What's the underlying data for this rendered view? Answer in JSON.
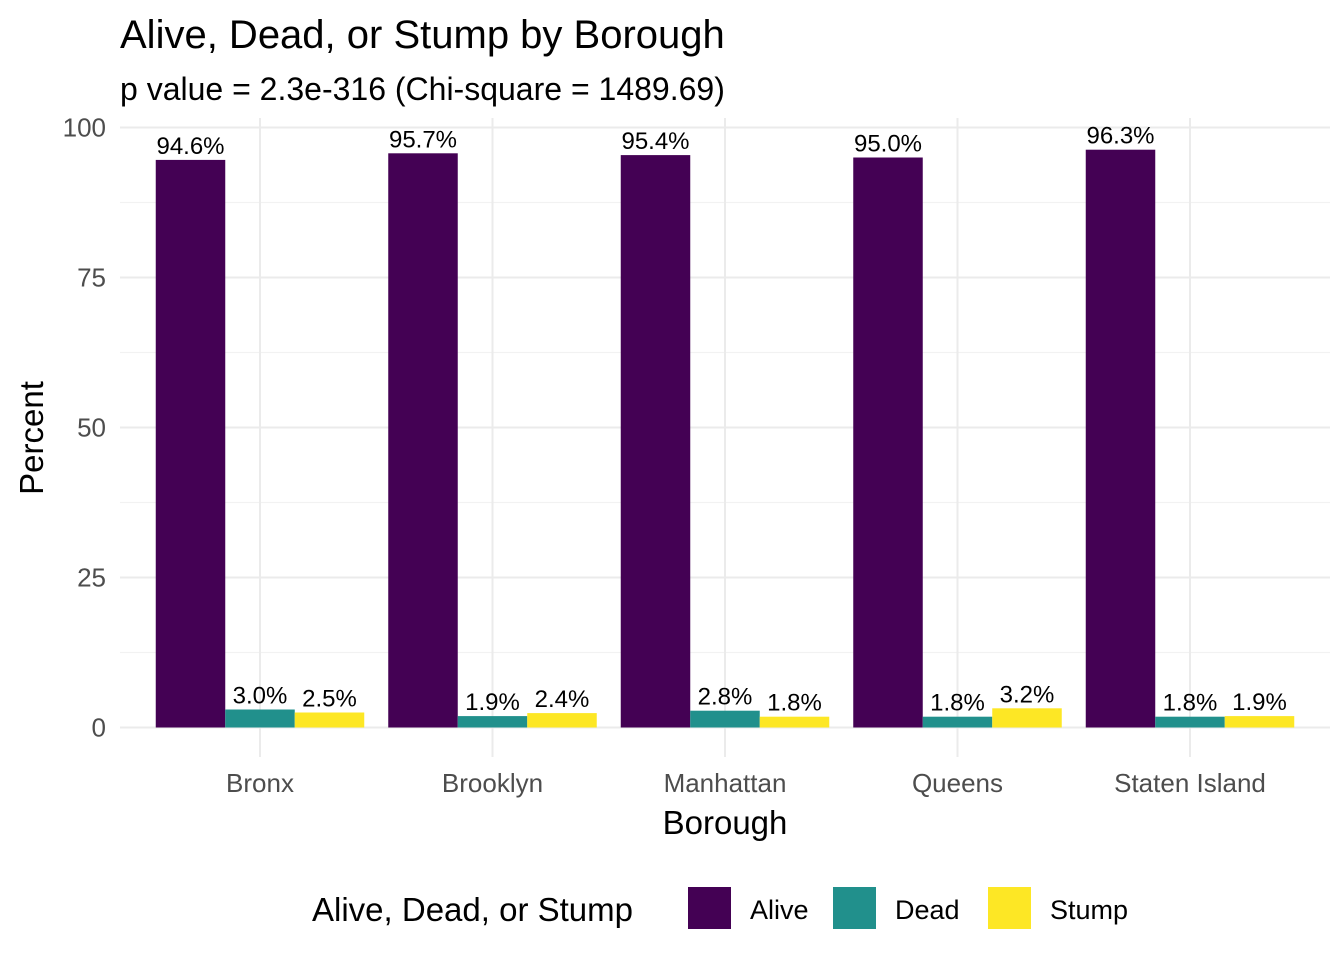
{
  "chart_data": {
    "type": "bar",
    "title": "Alive, Dead, or Stump by Borough",
    "subtitle": "p value = 2.3e-316 (Chi-square = 1489.69)",
    "xlabel": "Borough",
    "ylabel": "Percent",
    "categories": [
      "Bronx",
      "Brooklyn",
      "Manhattan",
      "Queens",
      "Staten Island"
    ],
    "series": [
      {
        "name": "Alive",
        "color": "#440154",
        "values": [
          94.6,
          95.7,
          95.4,
          95.0,
          96.3
        ],
        "labels": [
          "94.6%",
          "95.7%",
          "95.4%",
          "95.0%",
          "96.3%"
        ]
      },
      {
        "name": "Dead",
        "color": "#21908C",
        "values": [
          3.0,
          1.9,
          2.8,
          1.8,
          1.8
        ],
        "labels": [
          "3.0%",
          "1.9%",
          "2.8%",
          "1.8%",
          "1.8%"
        ]
      },
      {
        "name": "Stump",
        "color": "#FDE725",
        "values": [
          2.5,
          2.4,
          1.8,
          3.2,
          1.9
        ],
        "labels": [
          "2.5%",
          "2.4%",
          "1.8%",
          "3.2%",
          "1.9%"
        ]
      }
    ],
    "yticks": [
      0,
      25,
      50,
      75,
      100
    ],
    "ylim": [
      0,
      100
    ],
    "grid": true,
    "legend": {
      "title": "Alive, Dead, or Stump",
      "position": "bottom"
    }
  }
}
